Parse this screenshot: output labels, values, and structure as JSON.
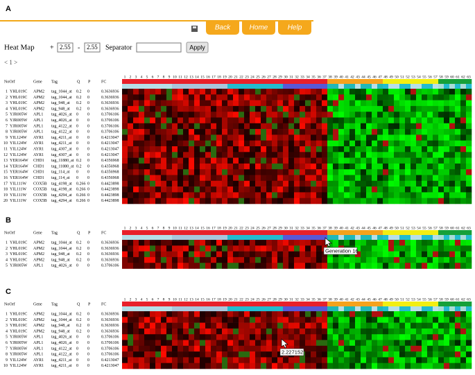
{
  "buttons": [
    "Back",
    "Home",
    "Help"
  ],
  "form": {
    "title": "Heat Map",
    "plus": "+",
    "low": "2.55",
    "minus": "-",
    "high": "2.55",
    "separator_label": "Separator",
    "apply": "Apply",
    "pager": "< 1 >"
  },
  "header": [
    "NoOrf",
    "Gene",
    "Tag",
    "Q",
    "P",
    "FC"
  ],
  "columns": [
    1,
    2,
    3,
    4,
    5,
    6,
    7,
    8,
    9,
    10,
    11,
    12,
    13,
    14,
    15,
    16,
    17,
    18,
    19,
    20,
    21,
    22,
    23,
    24,
    25,
    26,
    27,
    28,
    29,
    30,
    31,
    32,
    33,
    34,
    35,
    36,
    37,
    38,
    39,
    40,
    41,
    42,
    43,
    44,
    45,
    46,
    47,
    48,
    49,
    50,
    51,
    52,
    53,
    54,
    55,
    56,
    57,
    58,
    59,
    60,
    61,
    62,
    63
  ],
  "panels": [
    {
      "label": "A",
      "rows": [
        [
          "1",
          "YHL019C",
          "APM2",
          "tag_1044_at",
          "0.2",
          "0",
          "0.3636936"
        ],
        [
          "2",
          "YHL019C",
          "APM2",
          "tag_1044_at",
          "0.2",
          "0",
          "0.3636936"
        ],
        [
          "3",
          "YHL019C",
          "APM2",
          "tag_948_at",
          "0.2",
          "0",
          "0.3636936"
        ],
        [
          "4",
          "YHL019C",
          "APM2",
          "tag_948_at",
          "0.2",
          "0",
          "0.3636936"
        ],
        [
          "5",
          "YJR005W",
          "APL1",
          "tag_4026_at",
          "0",
          "0",
          "0.3706106"
        ],
        [
          "6",
          "YJR005W",
          "APL1",
          "tag_4026_at",
          "0",
          "0",
          "0.3706106"
        ],
        [
          "7",
          "YJR005W",
          "APL1",
          "tag_4122_at",
          "0",
          "0",
          "0.3706106"
        ],
        [
          "8",
          "YJR005W",
          "APL1",
          "tag_4122_at",
          "0",
          "0",
          "0.3706106"
        ],
        [
          "9",
          "YIL124W",
          "AYR1",
          "tag_4211_at",
          "0",
          "0",
          "0.4213047"
        ],
        [
          "10",
          "YIL124W",
          "AYR1",
          "tag_4211_at",
          "0",
          "0",
          "0.4213047"
        ],
        [
          "11",
          "YIL124W",
          "AYR1",
          "tag_4307_at",
          "0",
          "0",
          "0.4213047"
        ],
        [
          "12",
          "YIL124W",
          "AYR1",
          "tag_4307_at",
          "0",
          "0",
          "0.4213047"
        ],
        [
          "13",
          "YER164W",
          "CHD1",
          "tag_11880_at",
          "0.2",
          "0",
          "0.4356968"
        ],
        [
          "14",
          "YER164W",
          "CHD1",
          "tag_11880_at",
          "0.2",
          "0",
          "0.4356968"
        ],
        [
          "15",
          "YER164W",
          "CHD1",
          "tag_114_at",
          "0",
          "0",
          "0.4356968"
        ],
        [
          "16",
          "YER164W",
          "CHD1",
          "tag_114_at",
          "0",
          "0",
          "0.4356968"
        ],
        [
          "17",
          "YIL111W",
          "COX5B",
          "tag_4198_at",
          "0.266",
          "0",
          "0.4423898"
        ],
        [
          "18",
          "YIL111W",
          "COX5B",
          "tag_4198_at",
          "0.266",
          "0",
          "0.4423898"
        ],
        [
          "19",
          "YIL111W",
          "COX5B",
          "tag_4294_at",
          "0.266",
          "0",
          "0.4423898"
        ],
        [
          "20",
          "YIL111W",
          "COX5B",
          "tag_4294_at",
          "0.266",
          "0",
          "0.4423898"
        ]
      ]
    },
    {
      "label": "B",
      "tooltip": "Generation 16",
      "rows": [
        [
          "1",
          "YHL019C",
          "APM2",
          "tag_1044_at",
          "0.2",
          "0",
          "0.3636936"
        ],
        [
          "2",
          "YHL019C",
          "APM2",
          "tag_1044_at",
          "0.2",
          "0",
          "0.3636936"
        ],
        [
          "3",
          "YHL019C",
          "APM2",
          "tag_948_at",
          "0.2",
          "0",
          "0.3636936"
        ],
        [
          "4",
          "YHL019C",
          "APM2",
          "tag_948_at",
          "0.2",
          "0",
          "0.3636936"
        ],
        [
          "5",
          "YJR005W",
          "APL1",
          "tag_4026_at",
          "0",
          "0",
          "0.3706106"
        ]
      ]
    },
    {
      "label": "C",
      "tooltip": "2.227152",
      "rows": [
        [
          "1",
          "YHL019C",
          "APM2",
          "tag_1044_at",
          "0.2",
          "0",
          "0.3636936"
        ],
        [
          "2",
          "YHL019C",
          "APM2",
          "tag_1044_at",
          "0.2",
          "0",
          "0.3636936"
        ],
        [
          "3",
          "YHL019C",
          "APM2",
          "tag_948_at",
          "0.2",
          "0",
          "0.3636936"
        ],
        [
          "4",
          "YHL019C",
          "APM2",
          "tag_948_at",
          "0.2",
          "0",
          "0.3636936"
        ],
        [
          "5",
          "YJR005W",
          "APL1",
          "tag_4026_at",
          "0",
          "0",
          "0.3706106"
        ],
        [
          "6",
          "YJR005W",
          "APL1",
          "tag_4026_at",
          "0",
          "0",
          "0.3706106"
        ],
        [
          "7",
          "YJR005W",
          "APL1",
          "tag_4122_at",
          "0",
          "0",
          "0.3706106"
        ],
        [
          "8",
          "YJR005W",
          "APL1",
          "tag_4122_at",
          "0",
          "0",
          "0.3706106"
        ],
        [
          "9",
          "YIL124W",
          "AYR1",
          "tag_4211_at",
          "0",
          "0",
          "0.4213047"
        ],
        [
          "10",
          "YIL124W",
          "AYR1",
          "tag_4211_at",
          "0",
          "0",
          "0.4213047"
        ]
      ]
    }
  ]
}
